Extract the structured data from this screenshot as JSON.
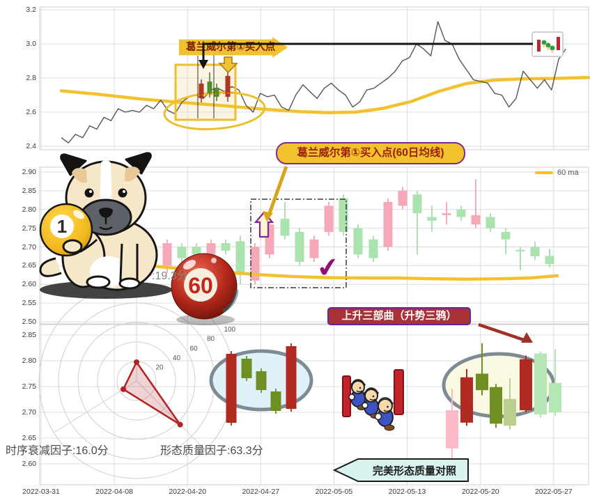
{
  "annotations": {
    "top_banner": "葛兰威尔第①买入点",
    "mid_callout": "葛兰威尔第①买入点(60日均线)",
    "rising_three": "上升三部曲（升势三鸦）",
    "perfect_compare": "完美形态质量对照",
    "factor_overreaction": "过激与报复因子:19.3分",
    "factor_time_decay": "时序衰减因子:16.0分",
    "factor_quality": "形态质量因子:63.3分",
    "checkmark": "✔",
    "ball_one": "1",
    "ball_sixty": "60",
    "legend_60ma": "60 ma"
  },
  "axis": {
    "x_dates": [
      "2022-03-31",
      "2022-04-08",
      "2022-04-20",
      "2022-04-27",
      "2022-05-05",
      "2022-05-13",
      "2022-05-20",
      "2022-05-27"
    ],
    "top_y": [
      "3.2",
      "3.0",
      "2.8",
      "2.6",
      "2.4"
    ],
    "mid_y": [
      "2.90",
      "2.85",
      "2.80",
      "2.75",
      "2.70",
      "2.65",
      "2.60",
      "2.55",
      "2.50"
    ],
    "bot_y": [
      "2.85",
      "2.80",
      "2.75",
      "2.70",
      "2.65",
      "2.60"
    ]
  },
  "colors": {
    "accent_yellow": "#f2c22e",
    "price_line": "#555555",
    "grid": "#dcdcdc",
    "spine": "#cfcfcf",
    "up_body": "#abe3ae",
    "down_body": "#f5a9b8",
    "up_wick": "#8fd79a",
    "down_wick": "#ef93a5",
    "darkred": "#b02a22",
    "olive": "#6f8f23",
    "paleolive": "#bccf8f",
    "palegreen": "#b5e6b5",
    "palepink": "#f9bac6",
    "radar": "#b22222",
    "purple": "#7c2a8d"
  },
  "chart_data": [
    {
      "id": "top_price",
      "type": "line",
      "ylabel": "price",
      "yticks": [
        3.2,
        3.0,
        2.8,
        2.6,
        2.4
      ],
      "ylim": [
        2.35,
        3.25
      ],
      "price": [
        2.45,
        2.42,
        2.47,
        2.45,
        2.52,
        2.5,
        2.57,
        2.55,
        2.62,
        2.6,
        2.61,
        2.6,
        2.64,
        2.62,
        2.67,
        2.61,
        2.59,
        2.66,
        2.69,
        2.7,
        2.68,
        2.73,
        2.74,
        2.72,
        2.75,
        2.73,
        2.64,
        2.6,
        2.71,
        2.69,
        2.7,
        2.63,
        2.61,
        2.7,
        2.76,
        2.72,
        2.68,
        2.74,
        2.77,
        2.73,
        2.7,
        2.63,
        2.66,
        2.73,
        2.74,
        2.77,
        2.8,
        2.84,
        2.9,
        2.92,
        3.0,
        2.97,
        2.93,
        3.13,
        3.02,
        3.0,
        2.91,
        2.85,
        2.79,
        2.78,
        2.77,
        2.71,
        2.7,
        2.63,
        2.68,
        2.84,
        2.79,
        2.74,
        2.79,
        2.73,
        2.91,
        2.97
      ],
      "ma60": [
        [
          88,
          2.725
        ],
        [
          140,
          2.705
        ],
        [
          200,
          2.678
        ],
        [
          260,
          2.657
        ],
        [
          320,
          2.638
        ],
        [
          380,
          2.617
        ],
        [
          430,
          2.603
        ],
        [
          470,
          2.597
        ],
        [
          510,
          2.6
        ],
        [
          550,
          2.622
        ],
        [
          590,
          2.662
        ],
        [
          630,
          2.722
        ],
        [
          670,
          2.768
        ],
        [
          710,
          2.788
        ],
        [
          750,
          2.795
        ],
        [
          800,
          2.798
        ],
        [
          845,
          2.803
        ]
      ],
      "black_reference_level": 3.0
    },
    {
      "id": "mid_candles",
      "type": "candlestick",
      "yticks": [
        2.9,
        2.85,
        2.8,
        2.75,
        2.7,
        2.65,
        2.6,
        2.55,
        2.5
      ],
      "candles": [
        {
          "x": 240,
          "o": 2.71,
          "h": 2.72,
          "l": 2.63,
          "c": 2.65,
          "d": "down"
        },
        {
          "x": 261,
          "o": 2.67,
          "h": 2.71,
          "l": 2.66,
          "c": 2.7,
          "d": "up"
        },
        {
          "x": 282,
          "o": 2.68,
          "h": 2.71,
          "l": 2.67,
          "c": 2.7,
          "d": "up"
        },
        {
          "x": 303,
          "o": 2.71,
          "h": 2.72,
          "l": 2.67,
          "c": 2.68,
          "d": "down"
        },
        {
          "x": 324,
          "o": 2.69,
          "h": 2.72,
          "l": 2.68,
          "c": 2.71,
          "d": "up"
        },
        {
          "x": 345,
          "o": 2.625,
          "h": 2.73,
          "l": 2.6,
          "c": 2.715,
          "d": "up"
        },
        {
          "x": 366,
          "o": 2.7,
          "h": 2.71,
          "l": 2.6,
          "c": 2.61,
          "d": "down"
        },
        {
          "x": 387,
          "o": 2.76,
          "h": 2.77,
          "l": 2.67,
          "c": 2.68,
          "d": "down"
        },
        {
          "x": 409,
          "o": 2.73,
          "h": 2.82,
          "l": 2.72,
          "c": 2.775,
          "d": "up"
        },
        {
          "x": 430,
          "o": 2.66,
          "h": 2.75,
          "l": 2.65,
          "c": 2.74,
          "d": "up"
        },
        {
          "x": 451,
          "o": 2.72,
          "h": 2.73,
          "l": 2.66,
          "c": 2.67,
          "d": "down"
        },
        {
          "x": 472,
          "o": 2.81,
          "h": 2.82,
          "l": 2.73,
          "c": 2.74,
          "d": "down"
        },
        {
          "x": 493,
          "o": 2.74,
          "h": 2.84,
          "l": 2.73,
          "c": 2.83,
          "d": "up"
        },
        {
          "x": 514,
          "o": 2.68,
          "h": 2.76,
          "l": 2.67,
          "c": 2.75,
          "d": "up"
        },
        {
          "x": 536,
          "o": 2.67,
          "h": 2.73,
          "l": 2.66,
          "c": 2.72,
          "d": "up"
        },
        {
          "x": 557,
          "o": 2.82,
          "h": 2.83,
          "l": 2.69,
          "c": 2.7,
          "d": "down"
        },
        {
          "x": 578,
          "o": 2.85,
          "h": 2.86,
          "l": 2.8,
          "c": 2.81,
          "d": "down"
        },
        {
          "x": 599,
          "o": 2.79,
          "h": 2.85,
          "l": 2.68,
          "c": 2.84,
          "d": "up"
        },
        {
          "x": 620,
          "o": 2.77,
          "h": 2.81,
          "l": 2.74,
          "c": 2.78,
          "d": "up"
        },
        {
          "x": 641,
          "o": 2.79,
          "h": 2.82,
          "l": 2.76,
          "c": 2.785,
          "d": "down"
        },
        {
          "x": 662,
          "o": 2.78,
          "h": 2.81,
          "l": 2.77,
          "c": 2.8,
          "d": "up"
        },
        {
          "x": 683,
          "o": 2.785,
          "h": 2.88,
          "l": 2.75,
          "c": 2.76,
          "d": "down"
        },
        {
          "x": 704,
          "o": 2.75,
          "h": 2.79,
          "l": 2.74,
          "c": 2.78,
          "d": "up"
        },
        {
          "x": 726,
          "o": 2.72,
          "h": 2.75,
          "l": 2.68,
          "c": 2.74,
          "d": "up"
        },
        {
          "x": 747,
          "o": 2.688,
          "h": 2.7,
          "l": 2.638,
          "c": 2.692,
          "d": "up"
        },
        {
          "x": 768,
          "o": 2.675,
          "h": 2.715,
          "l": 2.665,
          "c": 2.7,
          "d": "up"
        },
        {
          "x": 789,
          "o": 2.654,
          "h": 2.695,
          "l": 2.645,
          "c": 2.676,
          "d": "up"
        }
      ],
      "ma60": [
        [
          225,
          2.648
        ],
        [
          270,
          2.64
        ],
        [
          320,
          2.633
        ],
        [
          370,
          2.626
        ],
        [
          420,
          2.621
        ],
        [
          470,
          2.618
        ],
        [
          520,
          2.617
        ],
        [
          570,
          2.617
        ],
        [
          620,
          2.615
        ],
        [
          670,
          2.614
        ],
        [
          720,
          2.615
        ],
        [
          760,
          2.617
        ],
        [
          800,
          2.623
        ]
      ],
      "dashed_box_price": {
        "x0": 360,
        "x1": 497,
        "p_top": 2.828,
        "p_bot": 2.592
      }
    },
    {
      "id": "bottom_pattern",
      "type": "candlestick",
      "yticks": [
        2.85,
        2.8,
        2.75,
        2.7,
        2.65,
        2.6
      ],
      "candles": [
        {
          "x": 649,
          "o": 2.704,
          "h": 2.746,
          "l": 2.608,
          "c": 2.63,
          "color": "palepink"
        },
        {
          "x": 670,
          "o": 2.68,
          "h": 2.784,
          "l": 2.674,
          "c": 2.768,
          "color": "darkred"
        },
        {
          "x": 692,
          "o": 2.775,
          "h": 2.834,
          "l": 2.733,
          "c": 2.743,
          "color": "olive"
        },
        {
          "x": 712,
          "o": 2.749,
          "h": 2.755,
          "l": 2.67,
          "c": 2.678,
          "color": "olive"
        },
        {
          "x": 732,
          "o": 2.726,
          "h": 2.766,
          "l": 2.667,
          "c": 2.674,
          "color": "paleolive"
        },
        {
          "x": 755,
          "o": 2.704,
          "h": 2.81,
          "l": 2.7,
          "c": 2.803,
          "color": "darkred"
        },
        {
          "x": 776,
          "o": 2.696,
          "h": 2.818,
          "l": 2.69,
          "c": 2.814,
          "color": "palegreen"
        },
        {
          "x": 797,
          "o": 2.7,
          "h": 2.823,
          "l": 2.693,
          "c": 2.757,
          "color": "palegreen"
        }
      ]
    },
    {
      "id": "radar",
      "type": "radar",
      "labels": [
        "过激与报复因子",
        "时序衰减因子",
        "形态质量因子"
      ],
      "values": [
        19.3,
        16.0,
        63.3
      ],
      "angles_deg": [
        90,
        212,
        315
      ],
      "rings": [
        20,
        40,
        60,
        80,
        100
      ],
      "max": 100
    },
    {
      "id": "template_bars",
      "type": "bar-pattern",
      "bars": [
        {
          "x": 332,
          "y0": 508,
          "y1": 607,
          "color": "darkred"
        },
        {
          "x": 354,
          "y0": 515,
          "y1": 543,
          "color": "olive"
        },
        {
          "x": 375,
          "y0": 533,
          "y1": 560,
          "color": "olive"
        },
        {
          "x": 396,
          "y0": 562,
          "y1": 590,
          "color": "olive"
        },
        {
          "x": 418,
          "y0": 497,
          "y1": 587,
          "color": "darkred"
        }
      ]
    }
  ]
}
